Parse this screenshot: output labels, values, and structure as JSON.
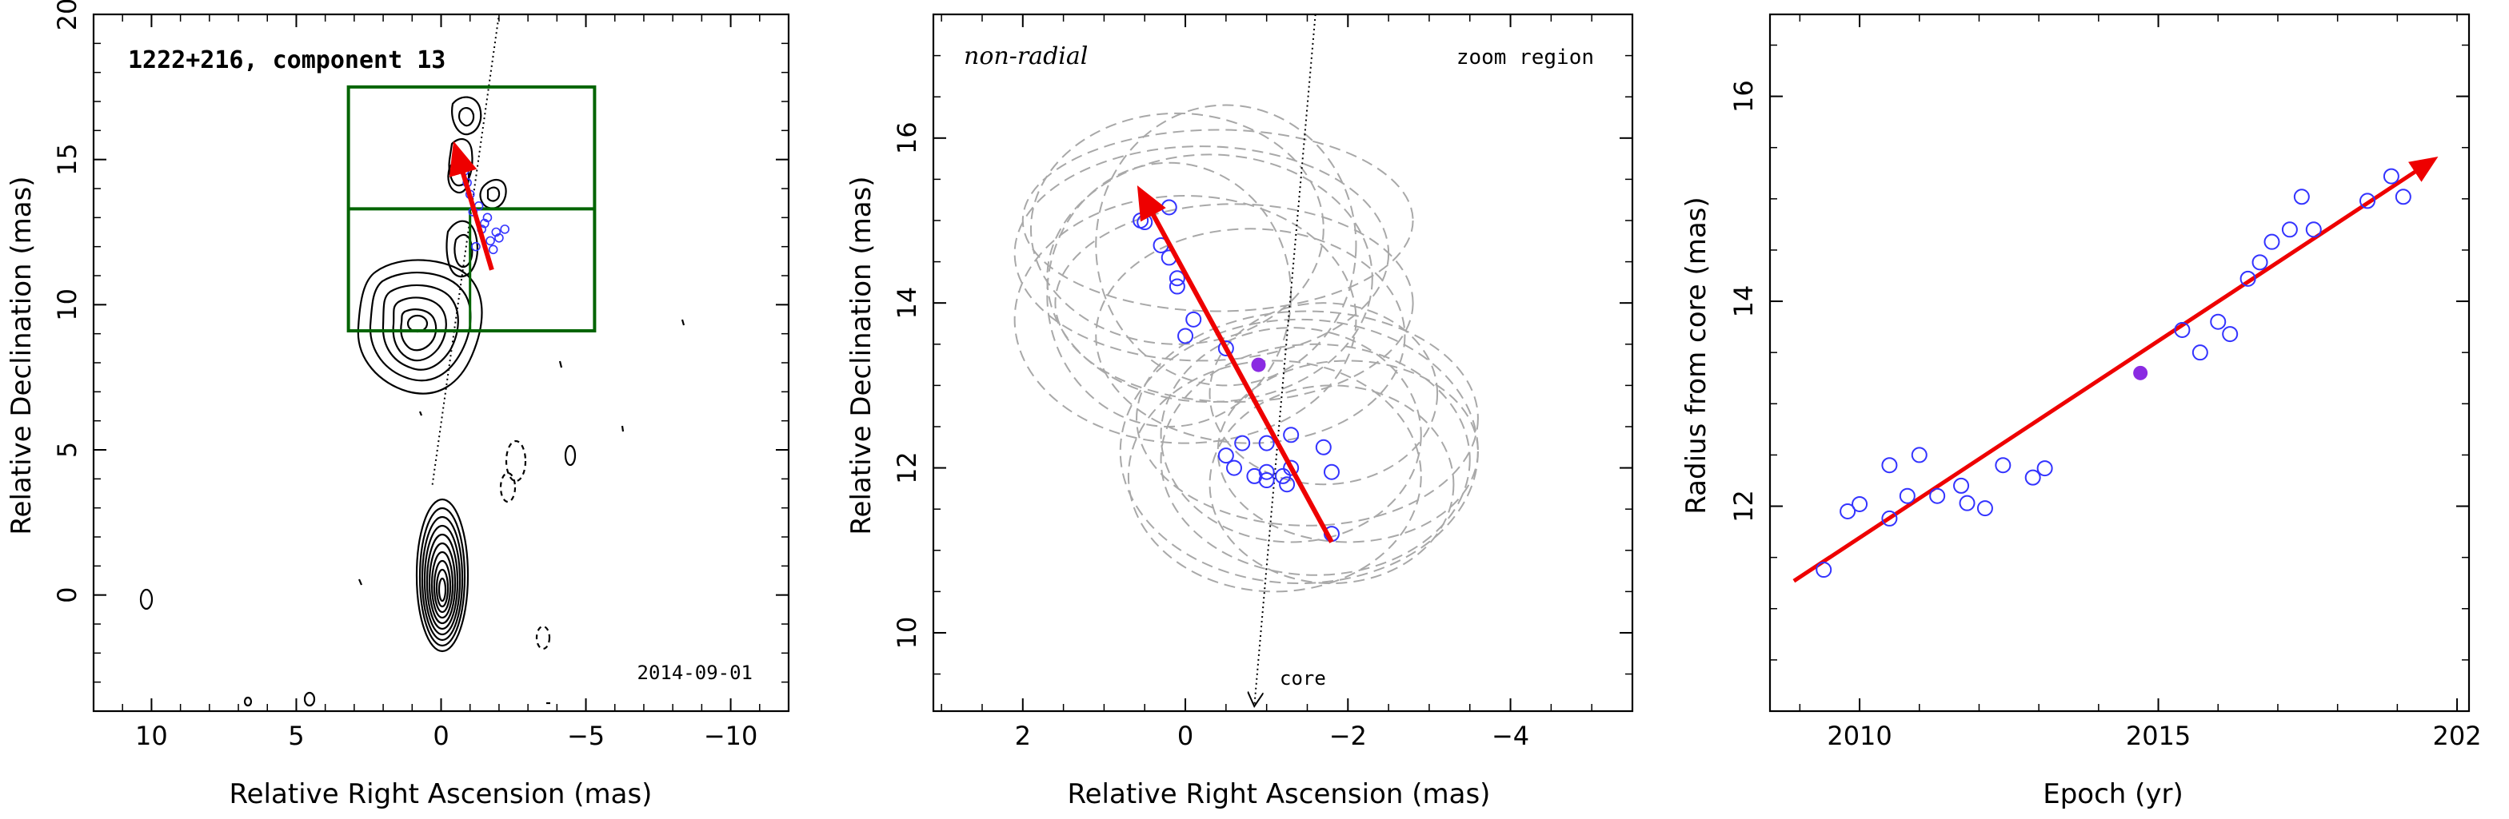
{
  "colors": {
    "arrow": "#ee0000",
    "points": "#3333ff",
    "mean_point": "#8a2be2",
    "box": "#006400",
    "ellipse": "#a8a8a8"
  },
  "chart_data": [
    {
      "type": "scatter",
      "panel": "contour map",
      "title": "1222+216, component 13",
      "annotation": "2014-09-01",
      "xlabel": "Relative Right Ascension (mas)",
      "ylabel": "Relative Declination (mas)",
      "xlim": [
        12,
        -12
      ],
      "ylim": [
        -4,
        20
      ],
      "xticks": [
        10,
        5,
        0,
        -5,
        -10
      ],
      "yticks": [
        0,
        5,
        10,
        15,
        20
      ],
      "zoom_box": {
        "x": [
          3.2,
          -5.3
        ],
        "y": [
          9.1,
          17.5
        ],
        "divider_y": 13.3
      },
      "points": [
        [
          -1.3,
          13.4
        ],
        [
          -1.0,
          13.8
        ],
        [
          -1.5,
          12.8
        ],
        [
          -1.7,
          12.2
        ],
        [
          -1.9,
          12.5
        ],
        [
          -0.9,
          14.2
        ],
        [
          -1.2,
          12.0
        ],
        [
          -1.4,
          12.6
        ],
        [
          -2.0,
          12.3
        ],
        [
          -1.6,
          13.0
        ],
        [
          -0.8,
          14.6
        ],
        [
          -1.1,
          13.2
        ],
        [
          -1.8,
          11.9
        ],
        [
          -2.2,
          12.6
        ],
        [
          -0.7,
          15.0
        ]
      ],
      "arrow": {
        "from": [
          -1.75,
          11.2
        ],
        "to": [
          -0.5,
          15.4
        ]
      }
    },
    {
      "type": "scatter",
      "panel": "zoom region",
      "label_left": "non-radial",
      "label_right": "zoom region",
      "core_label": "core",
      "xlabel": "Relative Right Ascension (mas)",
      "ylabel": "Relative Declination (mas)",
      "xlim": [
        3.1,
        -5.5
      ],
      "ylim": [
        9.05,
        17.5
      ],
      "xticks": [
        2,
        0,
        -2,
        -4
      ],
      "yticks": [
        10,
        12,
        14,
        16
      ],
      "points": [
        [
          0.55,
          15.0
        ],
        [
          0.5,
          14.98
        ],
        [
          0.2,
          15.16
        ],
        [
          0.3,
          14.7
        ],
        [
          0.2,
          14.55
        ],
        [
          0.1,
          14.3
        ],
        [
          0.1,
          14.2
        ],
        [
          -0.1,
          13.8
        ],
        [
          0.0,
          13.6
        ],
        [
          -0.5,
          13.45
        ],
        [
          -0.7,
          12.3
        ],
        [
          -0.5,
          12.15
        ],
        [
          -0.6,
          12.0
        ],
        [
          -0.85,
          11.9
        ],
        [
          -1.0,
          12.3
        ],
        [
          -1.3,
          12.4
        ],
        [
          -1.3,
          12.0
        ],
        [
          -1.25,
          11.8
        ],
        [
          -1.2,
          11.9
        ],
        [
          -1.7,
          12.25
        ],
        [
          -1.8,
          11.95
        ],
        [
          -1.8,
          11.2
        ],
        [
          -1.0,
          11.95
        ],
        [
          -1.0,
          11.85
        ]
      ],
      "mean_point": [
        -0.9,
        13.25
      ],
      "arrow": {
        "from": [
          -1.8,
          11.1
        ],
        "to": [
          0.55,
          15.35
        ]
      },
      "ellipses": [
        [
          -0.2,
          14.6,
          2.3,
          1.3
        ],
        [
          -0.3,
          14.3,
          2.0,
          1.5
        ],
        [
          0.1,
          14.9,
          1.8,
          1.4
        ],
        [
          -0.6,
          14.0,
          2.2,
          1.2
        ],
        [
          0.2,
          14.1,
          1.5,
          1.6
        ],
        [
          -0.4,
          15.0,
          2.4,
          1.1
        ],
        [
          -0.8,
          13.6,
          1.9,
          1.3
        ],
        [
          0.0,
          13.8,
          2.1,
          1.5
        ],
        [
          -0.5,
          14.7,
          1.6,
          1.7
        ],
        [
          -1.6,
          12.1,
          1.9,
          1.4
        ],
        [
          -1.3,
          12.4,
          1.6,
          1.3
        ],
        [
          -1.8,
          11.8,
          1.5,
          1.2
        ],
        [
          -1.5,
          12.6,
          2.1,
          1.3
        ],
        [
          -1.1,
          11.9,
          1.8,
          1.4
        ],
        [
          -1.7,
          12.9,
          1.4,
          1.1
        ],
        [
          -1.4,
          12.2,
          2.2,
          1.6
        ],
        [
          -2.0,
          12.2,
          1.6,
          1.1
        ]
      ]
    },
    {
      "type": "scatter",
      "panel": "radius vs epoch",
      "xlabel": "Epoch (yr)",
      "ylabel": "Radius from core (mas)",
      "xlim": [
        2008.5,
        2020.2
      ],
      "ylim": [
        10.0,
        16.8
      ],
      "xticks": [
        2010,
        2015
      ],
      "xtick_label_right": "202",
      "yticks": [
        12,
        14,
        16
      ],
      "points": [
        [
          2009.4,
          11.38
        ],
        [
          2009.8,
          11.95
        ],
        [
          2010.0,
          12.02
        ],
        [
          2010.5,
          11.88
        ],
        [
          2010.5,
          12.4
        ],
        [
          2010.8,
          12.1
        ],
        [
          2011.0,
          12.5
        ],
        [
          2011.3,
          12.1
        ],
        [
          2011.7,
          12.2
        ],
        [
          2011.8,
          12.03
        ],
        [
          2012.1,
          11.98
        ],
        [
          2012.4,
          12.4
        ],
        [
          2012.9,
          12.28
        ],
        [
          2013.1,
          12.37
        ],
        [
          2015.4,
          13.72
        ],
        [
          2015.7,
          13.5
        ],
        [
          2016.0,
          13.8
        ],
        [
          2016.2,
          13.68
        ],
        [
          2016.5,
          14.22
        ],
        [
          2016.7,
          14.38
        ],
        [
          2016.9,
          14.58
        ],
        [
          2017.2,
          14.7
        ],
        [
          2017.4,
          15.02
        ],
        [
          2017.6,
          14.7
        ],
        [
          2018.5,
          14.98
        ],
        [
          2018.9,
          15.22
        ],
        [
          2019.1,
          15.02
        ]
      ],
      "mean_point": [
        2014.7,
        13.3
      ],
      "trend": {
        "from": [
          2008.9,
          11.27
        ],
        "to": [
          2019.6,
          15.38
        ]
      }
    }
  ]
}
